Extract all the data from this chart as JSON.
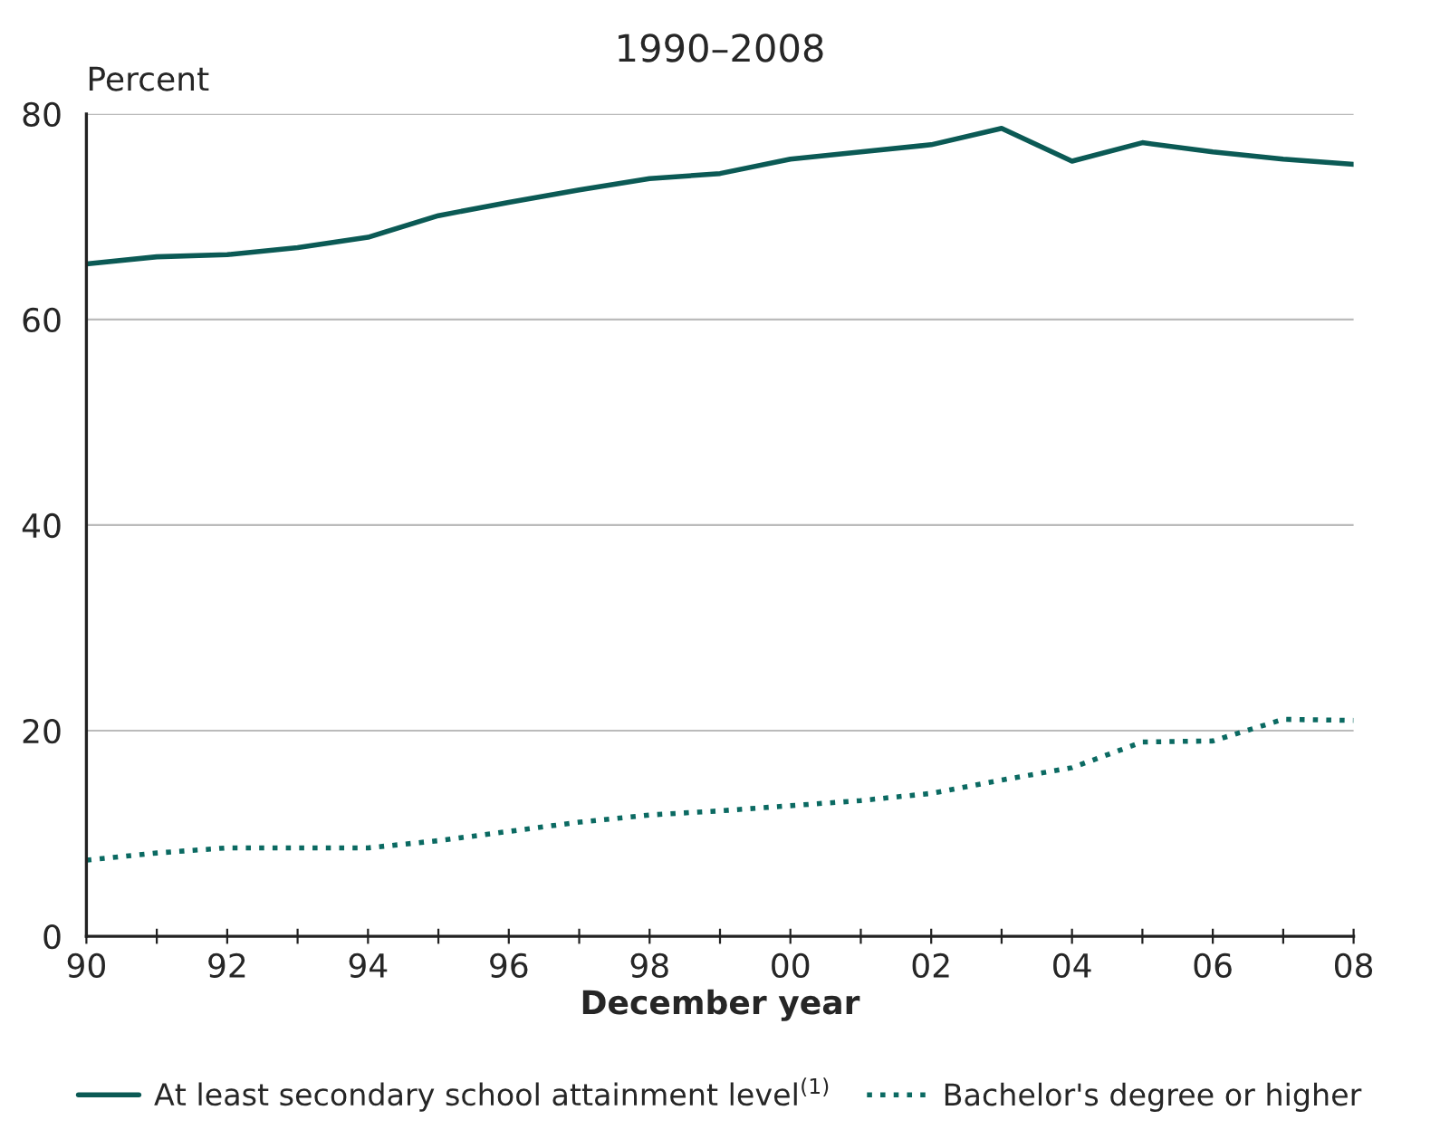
{
  "chart_data": {
    "type": "line",
    "title": "1990–2008",
    "xlabel": "December year",
    "ylabel": "Percent",
    "x": [
      1990,
      1991,
      1992,
      1993,
      1994,
      1995,
      1996,
      1997,
      1998,
      1999,
      2000,
      2001,
      2002,
      2003,
      2004,
      2005,
      2006,
      2007,
      2008
    ],
    "series": [
      {
        "name": "At least secondary school attainment level$^{(1)}$",
        "color": "#0b5a55",
        "line_style": "solid",
        "values": [
          65.4,
          66.1,
          66.3,
          67.0,
          68.0,
          70.1,
          71.4,
          72.6,
          73.7,
          74.2,
          75.6,
          76.3,
          77.0,
          78.6,
          75.4,
          77.2,
          76.3,
          75.6,
          75.1
        ]
      },
      {
        "name": "Bachelor's degree or higher",
        "color": "#0b6a62",
        "line_style": "dotted",
        "values": [
          7.4,
          8.1,
          8.6,
          8.6,
          8.6,
          9.3,
          10.2,
          11.1,
          11.8,
          12.2,
          12.7,
          13.2,
          13.9,
          15.2,
          16.4,
          18.9,
          19.0,
          21.1,
          21.0
        ]
      }
    ],
    "xlim": [
      1990,
      2008
    ],
    "xticks": [
      {
        "value": 1990,
        "label": "90"
      },
      {
        "value": 1991,
        "label": null
      },
      {
        "value": 1992,
        "label": "92"
      },
      {
        "value": 1993,
        "label": null
      },
      {
        "value": 1994,
        "label": "94"
      },
      {
        "value": 1995,
        "label": null
      },
      {
        "value": 1996,
        "label": "96"
      },
      {
        "value": 1997,
        "label": null
      },
      {
        "value": 1998,
        "label": "98"
      },
      {
        "value": 1999,
        "label": null
      },
      {
        "value": 2000,
        "label": "00"
      },
      {
        "value": 2001,
        "label": null
      },
      {
        "value": 2002,
        "label": "02"
      },
      {
        "value": 2003,
        "label": null
      },
      {
        "value": 2004,
        "label": "04"
      },
      {
        "value": 2005,
        "label": null
      },
      {
        "value": 2006,
        "label": "06"
      },
      {
        "value": 2007,
        "label": null
      },
      {
        "value": 2008,
        "label": "08"
      }
    ],
    "ylim": [
      0,
      80
    ],
    "yticks": [
      0,
      20,
      40,
      60,
      80
    ],
    "grid": "y",
    "legend": "bottom",
    "marker": "none"
  }
}
